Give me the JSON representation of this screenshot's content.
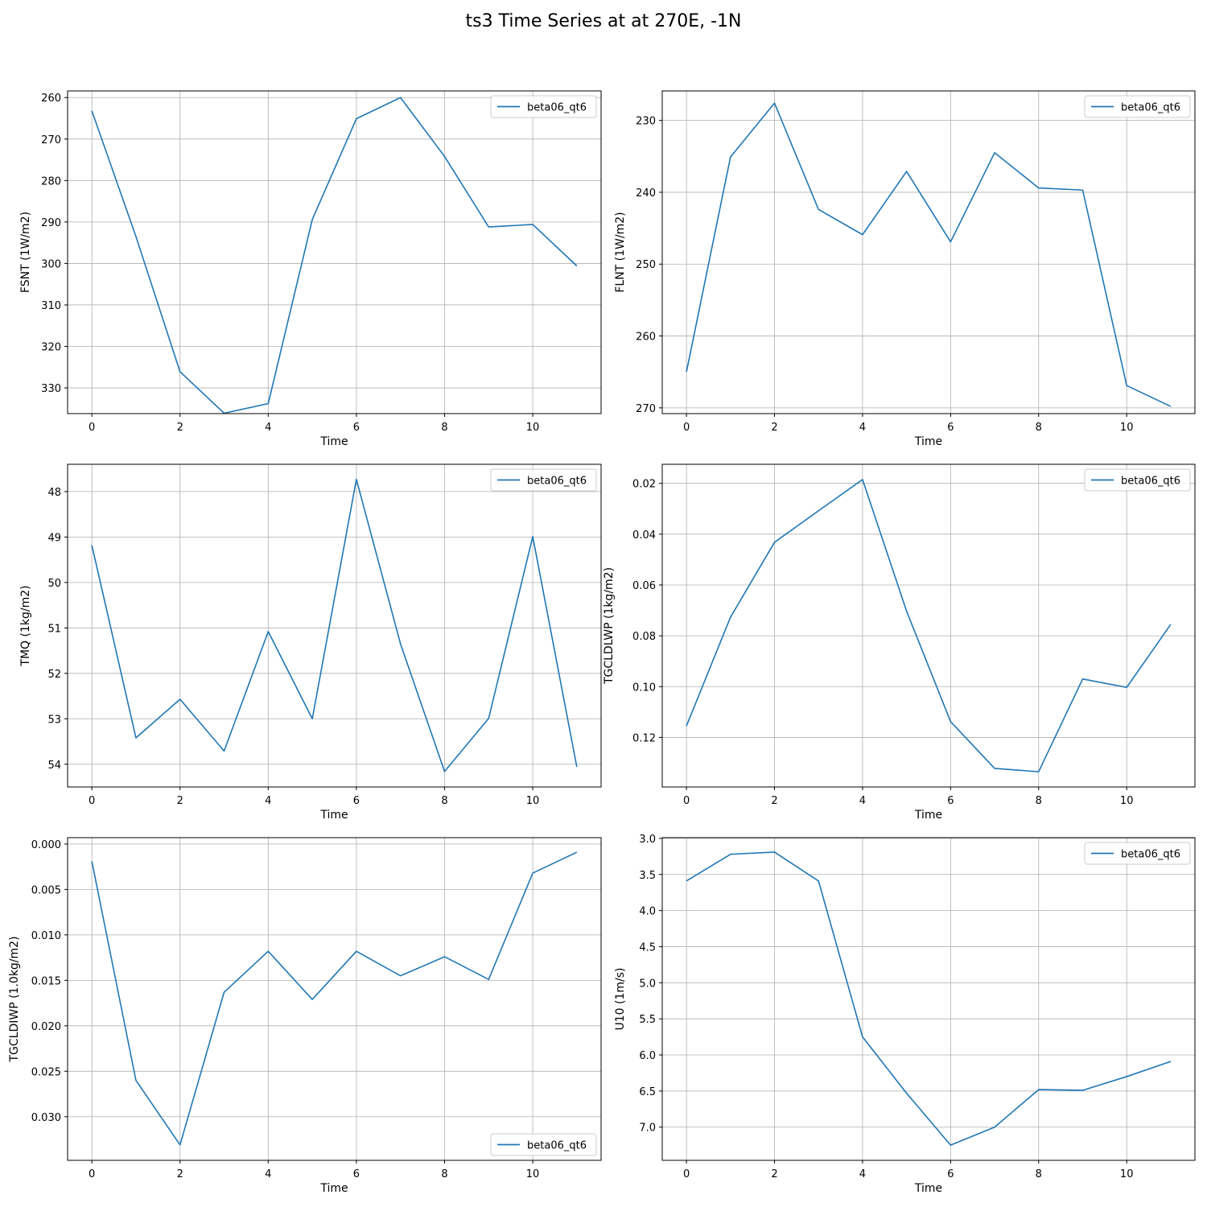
{
  "figure": {
    "title": "ts3 Time Series at at 270E, -1N"
  },
  "chart_data": [
    {
      "type": "line",
      "xlabel": "Time",
      "ylabel": "FSNT (1W/m2)",
      "ylim": [
        336.2,
        258.4
      ],
      "y_inverted": true,
      "xlim": [
        -0.55,
        11.55
      ],
      "xticks": [
        0,
        2,
        4,
        6,
        8,
        10
      ],
      "yticks": [
        260,
        270,
        280,
        290,
        300,
        310,
        320,
        330
      ],
      "grid": true,
      "legend_position": "upper right",
      "series": [
        {
          "name": "beta06_qt6",
          "color": "#1f77b4",
          "x": [
            0,
            1,
            2,
            3,
            4,
            5,
            6,
            7,
            8,
            9,
            10,
            11
          ],
          "values": [
            263.2,
            293.5,
            326.1,
            336.1,
            333.8,
            289.4,
            265.1,
            260.0,
            274.2,
            291.2,
            290.6,
            300.6
          ]
        }
      ]
    },
    {
      "type": "line",
      "xlabel": "Time",
      "ylabel": "FLNT (1W/m2)",
      "ylim": [
        270.8,
        225.9
      ],
      "y_inverted": true,
      "xlim": [
        -0.55,
        11.55
      ],
      "xticks": [
        0,
        2,
        4,
        6,
        8,
        10
      ],
      "yticks": [
        230,
        240,
        250,
        260,
        270
      ],
      "grid": true,
      "legend_position": "upper right",
      "series": [
        {
          "name": "beta06_qt6",
          "color": "#1f77b4",
          "x": [
            0,
            1,
            2,
            3,
            4,
            5,
            6,
            7,
            8,
            9,
            10,
            11
          ],
          "values": [
            265.0,
            235.1,
            227.6,
            242.4,
            245.9,
            237.1,
            246.9,
            234.5,
            239.4,
            239.7,
            266.9,
            269.8
          ]
        }
      ]
    },
    {
      "type": "line",
      "xlabel": "Time",
      "ylabel": "TMQ (1kg/m2)",
      "ylim": [
        54.5,
        47.4
      ],
      "y_inverted": true,
      "xlim": [
        -0.55,
        11.55
      ],
      "xticks": [
        0,
        2,
        4,
        6,
        8,
        10
      ],
      "yticks": [
        48,
        49,
        50,
        51,
        52,
        53,
        54
      ],
      "grid": true,
      "legend_position": "upper right",
      "series": [
        {
          "name": "beta06_qt6",
          "color": "#1f77b4",
          "x": [
            0,
            1,
            2,
            3,
            4,
            5,
            6,
            7,
            8,
            9,
            10,
            11
          ],
          "values": [
            49.18,
            53.42,
            52.57,
            53.71,
            51.08,
            53.0,
            47.73,
            51.35,
            54.16,
            52.99,
            48.99,
            54.06
          ]
        }
      ]
    },
    {
      "type": "line",
      "xlabel": "Time",
      "ylabel": "TGCLDLWP (1kg/m2)",
      "ylim": [
        0.1395,
        0.0125
      ],
      "y_inverted": true,
      "xlim": [
        -0.55,
        11.55
      ],
      "xticks": [
        0,
        2,
        4,
        6,
        8,
        10
      ],
      "yticks": [
        0.02,
        0.04,
        0.06,
        0.08,
        0.1,
        0.12
      ],
      "ytick_labels": [
        "0.02",
        "0.04",
        "0.06",
        "0.08",
        "0.10",
        "0.12"
      ],
      "grid": true,
      "legend_position": "upper right",
      "series": [
        {
          "name": "beta06_qt6",
          "color": "#1f77b4",
          "x": [
            0,
            1,
            2,
            3,
            4,
            5,
            6,
            7,
            8,
            9,
            10,
            11
          ],
          "values": [
            0.1155,
            0.0727,
            0.0432,
            0.0308,
            0.0185,
            0.0703,
            0.1138,
            0.1322,
            0.1335,
            0.097,
            0.1003,
            0.0755
          ]
        }
      ]
    },
    {
      "type": "line",
      "xlabel": "Time",
      "ylabel": "TGCLDIWP (1.0kg/m2)",
      "ylim": [
        0.0348,
        -0.0007
      ],
      "y_inverted": true,
      "xlim": [
        -0.55,
        11.55
      ],
      "xticks": [
        0,
        2,
        4,
        6,
        8,
        10
      ],
      "yticks": [
        0.0,
        0.005,
        0.01,
        0.015,
        0.02,
        0.025,
        0.03
      ],
      "ytick_labels": [
        "0.000",
        "0.005",
        "0.010",
        "0.015",
        "0.020",
        "0.025",
        "0.030"
      ],
      "grid": true,
      "legend_position": "lower right",
      "series": [
        {
          "name": "beta06_qt6",
          "color": "#1f77b4",
          "x": [
            0,
            1,
            2,
            3,
            4,
            5,
            6,
            7,
            8,
            9,
            10,
            11
          ],
          "values": [
            0.0019,
            0.026,
            0.0331,
            0.0163,
            0.0118,
            0.0171,
            0.0118,
            0.0145,
            0.0124,
            0.0149,
            0.0032,
            0.0009
          ]
        }
      ]
    },
    {
      "type": "line",
      "xlabel": "Time",
      "ylabel": "U10 (1m/s)",
      "ylim": [
        7.46,
        2.99
      ],
      "y_inverted": true,
      "xlim": [
        -0.55,
        11.55
      ],
      "xticks": [
        0,
        2,
        4,
        6,
        8,
        10
      ],
      "yticks": [
        3.0,
        3.5,
        4.0,
        4.5,
        5.0,
        5.5,
        6.0,
        6.5,
        7.0
      ],
      "ytick_labels": [
        "3.0",
        "3.5",
        "4.0",
        "4.5",
        "5.0",
        "5.5",
        "6.0",
        "6.5",
        "7.0"
      ],
      "grid": true,
      "legend_position": "upper right",
      "series": [
        {
          "name": "beta06_qt6",
          "color": "#1f77b4",
          "x": [
            0,
            1,
            2,
            3,
            4,
            5,
            6,
            7,
            8,
            9,
            10,
            11
          ],
          "values": [
            3.59,
            3.22,
            3.19,
            3.59,
            5.75,
            6.53,
            7.25,
            7.0,
            6.48,
            6.49,
            6.3,
            6.09
          ]
        }
      ]
    }
  ]
}
